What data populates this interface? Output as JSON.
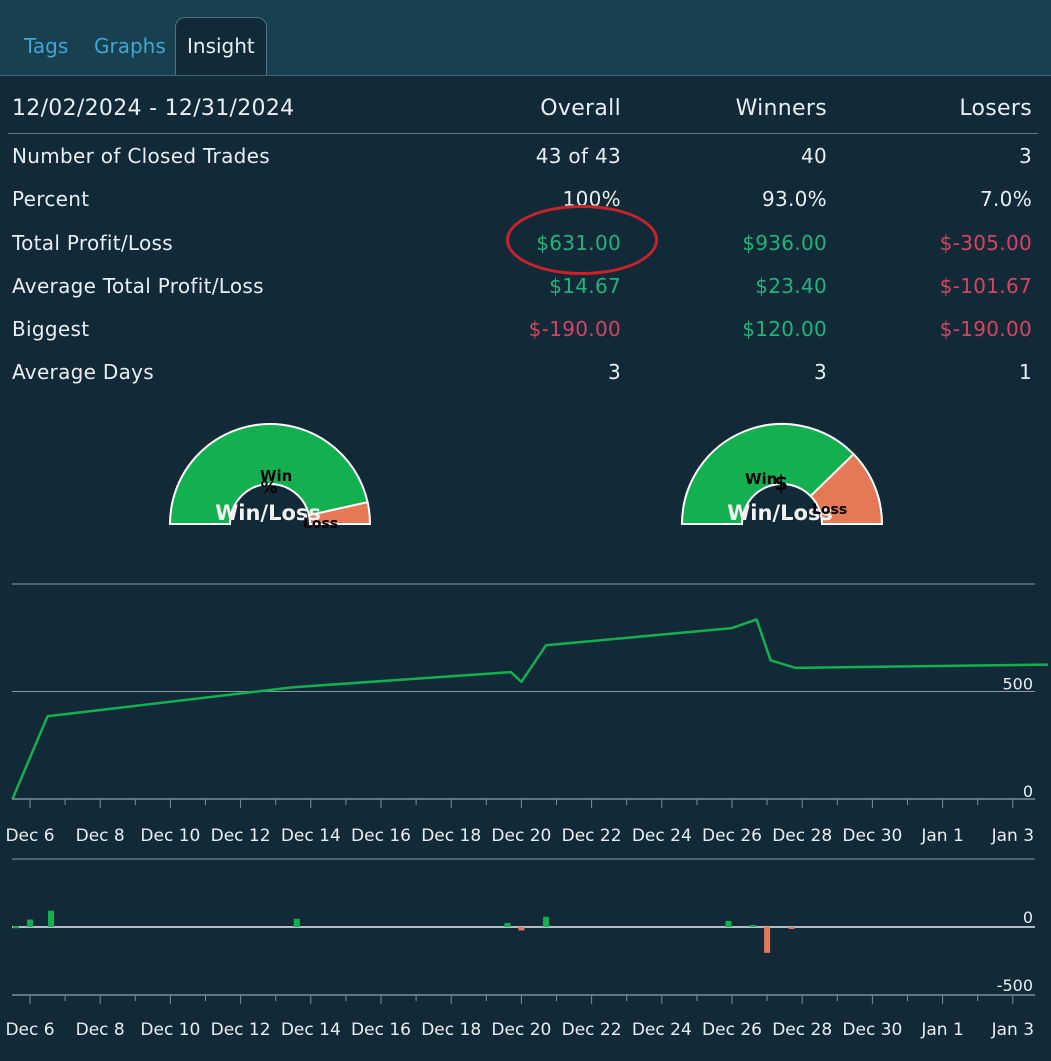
{
  "tabs": [
    {
      "label": "Tags"
    },
    {
      "label": "Graphs"
    },
    {
      "label": "Insight",
      "active": true
    }
  ],
  "table": {
    "date_range": "12/02/2024 - 12/31/2024",
    "columns": [
      "Overall",
      "Winners",
      "Losers"
    ],
    "rows": [
      {
        "label": "Number of Closed Trades",
        "values": [
          "43 of 43",
          "40",
          "3"
        ]
      },
      {
        "label": "Percent",
        "values": [
          "100%",
          "93.0%",
          "7.0%"
        ]
      },
      {
        "label": "Total Profit/Loss",
        "values": [
          "$631.00",
          "$936.00",
          "$-305.00"
        ]
      },
      {
        "label": "Average Total Profit/Loss",
        "values": [
          "$14.67",
          "$23.40",
          "$-101.67"
        ]
      },
      {
        "label": "Biggest",
        "values": [
          "$-190.00",
          "$120.00",
          "$-190.00"
        ]
      },
      {
        "label": "Average Days",
        "values": [
          "3",
          "3",
          "1"
        ]
      }
    ]
  },
  "gauges": [
    {
      "symbol": "%",
      "win_label": "Win",
      "loss_label": "Loss",
      "title": "Win/Loss",
      "win_fraction": 0.93
    },
    {
      "symbol": "$",
      "win_label": "Win",
      "loss_label": "Loss",
      "title": "Win/Loss",
      "win_fraction": 0.754
    }
  ],
  "colors": {
    "background": "#122a38",
    "tab_bar": "#19404e",
    "tab_link": "#3ea7d6",
    "positive": "#1fb47b",
    "negative": "#d54562",
    "gauge_win": "#12b04e",
    "gauge_loss": "#e57855",
    "annotation": "#c8232c"
  },
  "chart_data": [
    {
      "type": "line",
      "x_tick_labels": [
        "Dec 6",
        "Dec 8",
        "Dec 10",
        "Dec 12",
        "Dec 14",
        "Dec 16",
        "Dec 18",
        "Dec 20",
        "Dec 22",
        "Dec 24",
        "Dec 26",
        "Dec 28",
        "Dec 30",
        "Jan 1",
        "Jan 3"
      ],
      "y_tick_labels": [
        "500",
        "0"
      ],
      "ylim": [
        0,
        1000
      ],
      "series": [
        {
          "points": [
            {
              "day": 5.5,
              "y": 0
            },
            {
              "day": 6.5,
              "y": 385
            },
            {
              "day": 13.5,
              "y": 520
            },
            {
              "day": 19.7,
              "y": 590
            },
            {
              "day": 20.0,
              "y": 545
            },
            {
              "day": 20.7,
              "y": 715
            },
            {
              "day": 26.0,
              "y": 795
            },
            {
              "day": 26.7,
              "y": 835
            },
            {
              "day": 27.1,
              "y": 645
            },
            {
              "day": 27.8,
              "y": 610
            },
            {
              "day": 35.0,
              "y": 625
            }
          ]
        }
      ]
    },
    {
      "type": "bar",
      "x_tick_labels": [
        "Dec 6",
        "Dec 8",
        "Dec 10",
        "Dec 12",
        "Dec 14",
        "Dec 16",
        "Dec 18",
        "Dec 20",
        "Dec 22",
        "Dec 24",
        "Dec 26",
        "Dec 28",
        "Dec 30",
        "Jan 1",
        "Jan 3"
      ],
      "y_tick_labels": [
        "0",
        "-500"
      ],
      "ylim": [
        -550,
        250
      ],
      "values": [
        {
          "day": 5.6,
          "y": 5
        },
        {
          "day": 6.0,
          "y": 55
        },
        {
          "day": 6.6,
          "y": 120
        },
        {
          "day": 13.6,
          "y": 60
        },
        {
          "day": 19.6,
          "y": 30
        },
        {
          "day": 20.0,
          "y": -25
        },
        {
          "day": 20.7,
          "y": 75
        },
        {
          "day": 25.9,
          "y": 45
        },
        {
          "day": 26.6,
          "y": 15
        },
        {
          "day": 27.0,
          "y": -190
        },
        {
          "day": 27.7,
          "y": -10
        }
      ]
    }
  ]
}
